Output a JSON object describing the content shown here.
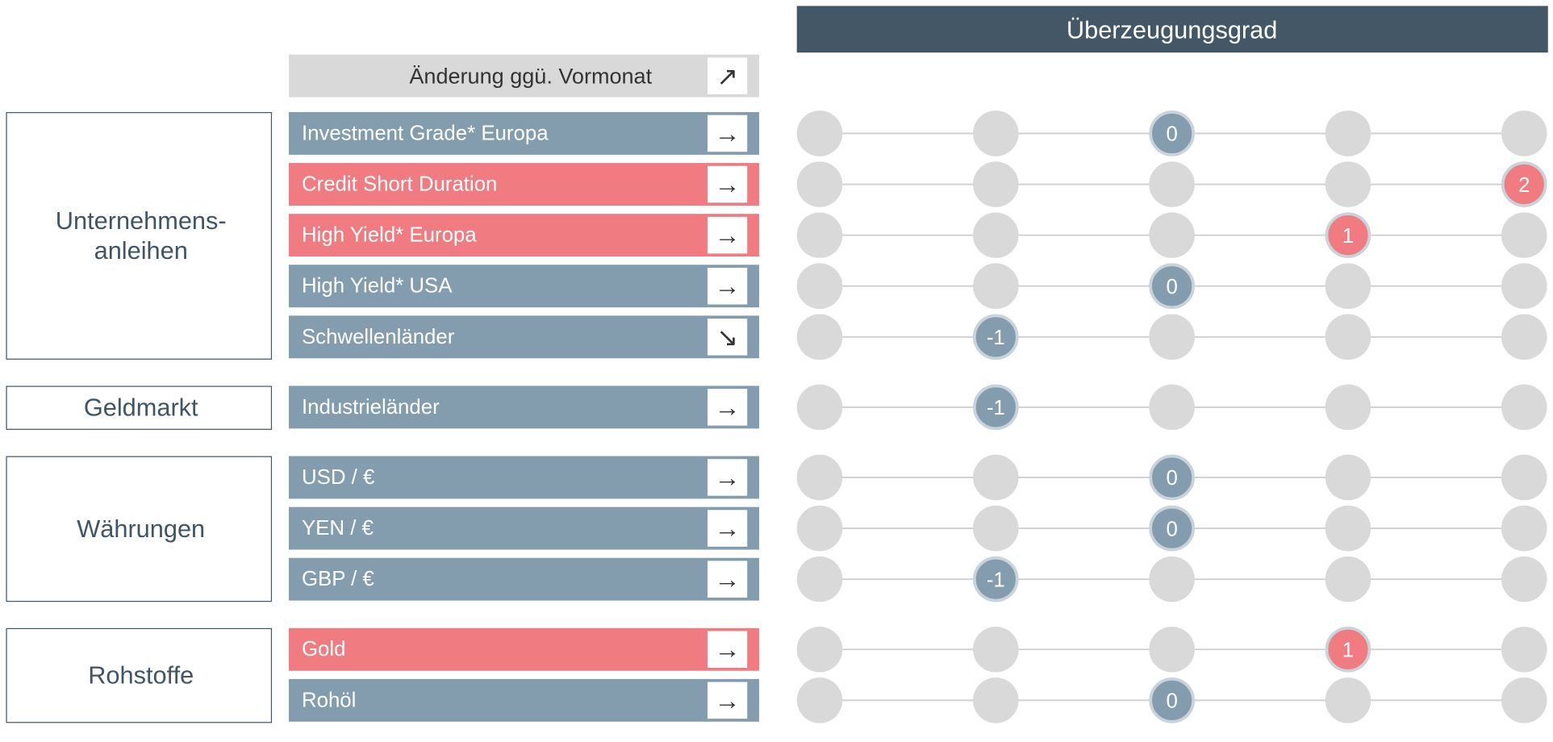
{
  "header": {
    "title": "Überzeugungsgrad",
    "change_label": "Änderung ggü. Vormonat",
    "change_icon": "↗"
  },
  "range": [
    -2,
    2
  ],
  "groups": [
    {
      "label": [
        "Unternehmens-",
        "anleihen"
      ],
      "rows": [
        {
          "name": "Investment Grade* Europa",
          "change": "→",
          "value": 0,
          "color": "#839cae"
        },
        {
          "name": "Credit Short Duration",
          "change": "→",
          "value": 2,
          "color": "#f07b80"
        },
        {
          "name": "High Yield* Europa",
          "change": "→",
          "value": 1,
          "color": "#f07b80"
        },
        {
          "name": "High Yield* USA",
          "change": "→",
          "value": 0,
          "color": "#839cae"
        },
        {
          "name": "Schwellenländer",
          "change": "↘",
          "value": -1,
          "color": "#839cae"
        }
      ]
    },
    {
      "label": [
        "Geldmarkt"
      ],
      "rows": [
        {
          "name": "Industrieländer",
          "change": "→",
          "value": -1,
          "color": "#839cae"
        }
      ]
    },
    {
      "label": [
        "Währungen"
      ],
      "rows": [
        {
          "name": "USD / €",
          "change": "→",
          "value": 0,
          "color": "#839cae"
        },
        {
          "name": "YEN / €",
          "change": "→",
          "value": 0,
          "color": "#839cae"
        },
        {
          "name": "GBP / €",
          "change": "→",
          "value": -1,
          "color": "#839cae"
        }
      ]
    },
    {
      "label": [
        "Rohstoffe"
      ],
      "rows": [
        {
          "name": "Gold",
          "change": "→",
          "value": 1,
          "color": "#f07b80"
        },
        {
          "name": "Rohöl",
          "change": "→",
          "value": 0,
          "color": "#839cae"
        }
      ]
    }
  ]
}
